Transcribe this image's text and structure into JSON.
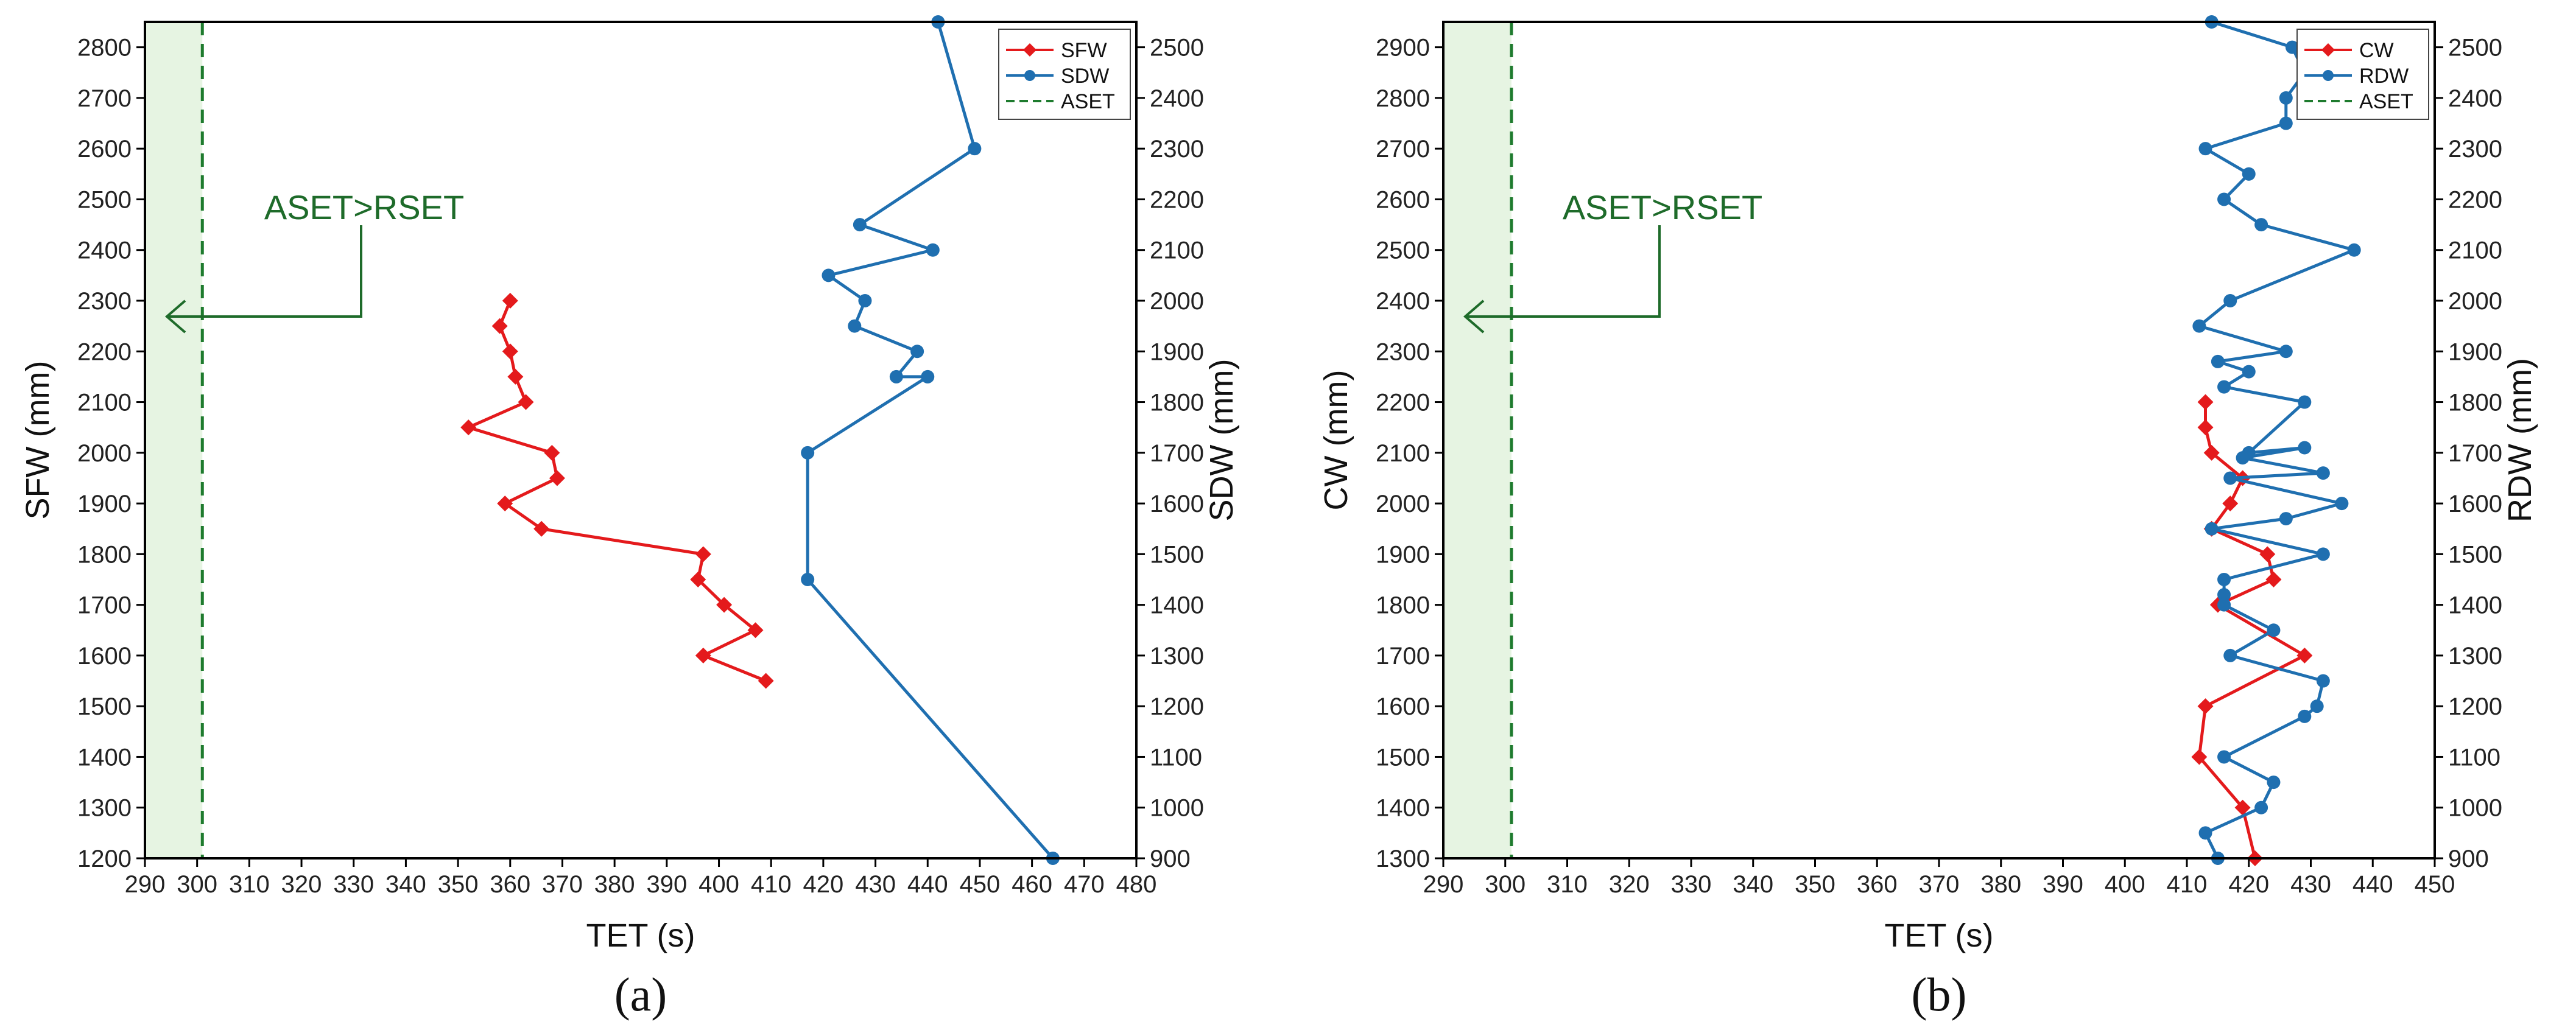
{
  "chart_data": [
    {
      "type": "line",
      "panel_label": "(a)",
      "xlabel": "TET (s)",
      "ylabel_left": "SFW (mm)",
      "ylabel_right": "SDW (mm)",
      "xlim": [
        290,
        480
      ],
      "xticks": [
        290,
        300,
        310,
        320,
        330,
        340,
        350,
        360,
        370,
        380,
        390,
        400,
        410,
        420,
        430,
        440,
        450,
        460,
        470,
        480
      ],
      "ylim_left": [
        1200,
        2850
      ],
      "yticks_left": [
        1200,
        1300,
        1400,
        1500,
        1600,
        1700,
        1800,
        1900,
        2000,
        2100,
        2200,
        2300,
        2400,
        2500,
        2600,
        2700,
        2800
      ],
      "ylim_right": [
        900,
        2550
      ],
      "yticks_right": [
        900,
        1000,
        1100,
        1200,
        1300,
        1400,
        1500,
        1600,
        1700,
        1800,
        1900,
        2000,
        2100,
        2200,
        2300,
        2400,
        2500
      ],
      "aset": {
        "name": "ASET",
        "value": 301,
        "shade_from": 290
      },
      "annotation": "ASET>RSET",
      "legend_position": "top-right",
      "series": [
        {
          "name": "SFW",
          "axis": "left",
          "color": "#e41a1c",
          "marker": "diamond",
          "points": [
            [
              360,
              2300
            ],
            [
              358,
              2250
            ],
            [
              360,
              2200
            ],
            [
              361,
              2150
            ],
            [
              363,
              2100
            ],
            [
              352,
              2050
            ],
            [
              368,
              2000
            ],
            [
              369,
              1950
            ],
            [
              359,
              1900
            ],
            [
              366,
              1850
            ],
            [
              397,
              1800
            ],
            [
              396,
              1750
            ],
            [
              401,
              1700
            ],
            [
              407,
              1650
            ],
            [
              397,
              1600
            ],
            [
              409,
              1550
            ]
          ]
        },
        {
          "name": "SDW",
          "axis": "right",
          "color": "#1f6fb0",
          "marker": "circle",
          "points": [
            [
              442,
              2550
            ],
            [
              449,
              2300
            ],
            [
              427,
              2150
            ],
            [
              441,
              2100
            ],
            [
              421,
              2050
            ],
            [
              428,
              2000
            ],
            [
              426,
              1950
            ],
            [
              438,
              1900
            ],
            [
              434,
              1850
            ],
            [
              440,
              1850
            ],
            [
              417,
              1700
            ],
            [
              417,
              1450
            ],
            [
              464,
              900
            ]
          ]
        }
      ]
    },
    {
      "type": "line",
      "panel_label": "(b)",
      "xlabel": "TET (s)",
      "ylabel_left": "CW (mm)",
      "ylabel_right": "RDW (mm)",
      "xlim": [
        290,
        450
      ],
      "xticks": [
        290,
        300,
        310,
        320,
        330,
        340,
        350,
        360,
        370,
        380,
        390,
        400,
        410,
        420,
        430,
        440,
        450
      ],
      "ylim_left": [
        1300,
        2950
      ],
      "yticks_left": [
        1300,
        1400,
        1500,
        1600,
        1700,
        1800,
        1900,
        2000,
        2100,
        2200,
        2300,
        2400,
        2500,
        2600,
        2700,
        2800,
        2900
      ],
      "ylim_right": [
        900,
        2550
      ],
      "yticks_right": [
        900,
        1000,
        1100,
        1200,
        1300,
        1400,
        1500,
        1600,
        1700,
        1800,
        1900,
        2000,
        2100,
        2200,
        2300,
        2400,
        2500
      ],
      "aset": {
        "name": "ASET",
        "value": 301,
        "shade_from": 290
      },
      "annotation": "ASET>RSET",
      "legend_position": "top-right",
      "series": [
        {
          "name": "CW",
          "axis": "left",
          "color": "#e41a1c",
          "marker": "diamond",
          "points": [
            [
              413,
              2200
            ],
            [
              413,
              2150
            ],
            [
              414,
              2100
            ],
            [
              419,
              2050
            ],
            [
              417,
              2000
            ],
            [
              414,
              1950
            ],
            [
              423,
              1900
            ],
            [
              424,
              1850
            ],
            [
              415,
              1800
            ],
            [
              429,
              1700
            ],
            [
              413,
              1600
            ],
            [
              412,
              1500
            ],
            [
              419,
              1400
            ],
            [
              421,
              1300
            ]
          ]
        },
        {
          "name": "RDW",
          "axis": "right",
          "color": "#1f6fb0",
          "marker": "circle",
          "points": [
            [
              414,
              2550
            ],
            [
              427,
              2500
            ],
            [
              429,
              2450
            ],
            [
              426,
              2400
            ],
            [
              426,
              2350
            ],
            [
              413,
              2300
            ],
            [
              420,
              2250
            ],
            [
              416,
              2200
            ],
            [
              422,
              2150
            ],
            [
              437,
              2100
            ],
            [
              417,
              2000
            ],
            [
              412,
              1950
            ],
            [
              426,
              1900
            ],
            [
              415,
              1880
            ],
            [
              420,
              1860
            ],
            [
              416,
              1830
            ],
            [
              429,
              1800
            ],
            [
              420,
              1700
            ],
            [
              429,
              1710
            ],
            [
              419,
              1690
            ],
            [
              432,
              1660
            ],
            [
              417,
              1650
            ],
            [
              435,
              1600
            ],
            [
              426,
              1570
            ],
            [
              414,
              1550
            ],
            [
              432,
              1500
            ],
            [
              416,
              1450
            ],
            [
              416,
              1420
            ],
            [
              416,
              1400
            ],
            [
              424,
              1350
            ],
            [
              417,
              1300
            ],
            [
              432,
              1250
            ],
            [
              431,
              1200
            ],
            [
              429,
              1180
            ],
            [
              416,
              1100
            ],
            [
              424,
              1050
            ],
            [
              422,
              1000
            ],
            [
              413,
              950
            ],
            [
              415,
              900
            ]
          ]
        }
      ]
    }
  ]
}
